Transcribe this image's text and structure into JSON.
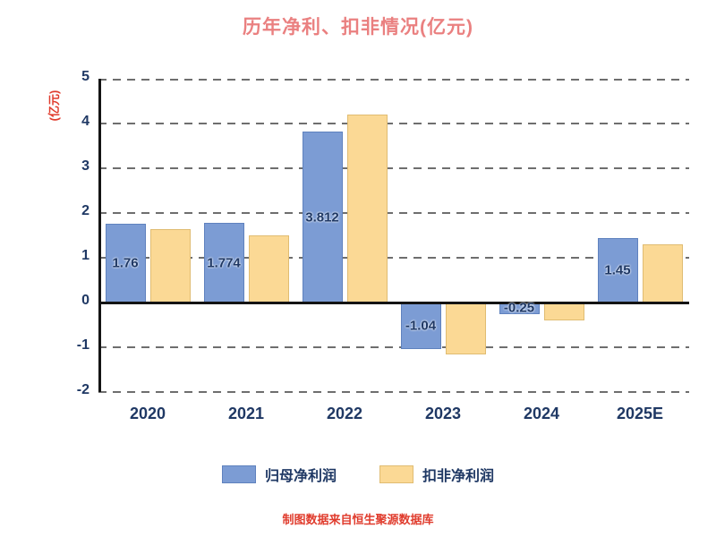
{
  "chart_data": {
    "type": "bar",
    "title": "历年净利、扣非情况(亿元)",
    "ylabel": "(亿元)",
    "categories": [
      "2020",
      "2021",
      "2022",
      "2023",
      "2024",
      "2025E"
    ],
    "series": [
      {
        "key": "net-profit-attributable",
        "name": "归母净利润",
        "color": "#7C9CD4",
        "border_color": "#5F82BE",
        "values": [
          1.76,
          1.774,
          3.812,
          -1.04,
          -0.25,
          1.45
        ],
        "labels": [
          "1.76",
          "1.774",
          "3.812",
          "-1.04",
          "-0.25",
          "1.45"
        ]
      },
      {
        "key": "non-recurring-net-profit",
        "name": "扣非净利润",
        "color": "#FBD995",
        "border_color": "#E0BC72",
        "values": [
          1.65,
          1.5,
          4.2,
          -1.15,
          -0.4,
          1.3
        ],
        "labels": [
          null,
          null,
          null,
          null,
          null,
          null
        ]
      }
    ],
    "ylim": [
      -2,
      5
    ],
    "ytick_step": 1,
    "grid": "dashed-horizontal",
    "legend_position": "bottom",
    "source_note": "制图数据来自恒生聚源数据库"
  },
  "colors": {
    "background": "#FFFFFF",
    "title": "#EA8080",
    "axis_text": "#1F3864",
    "bar_label": "#1F3864",
    "ylabel_text": "#E03C2D",
    "source_text": "#E03C2D",
    "gridline": "#6E6E6E",
    "axis_line": "#141414"
  }
}
